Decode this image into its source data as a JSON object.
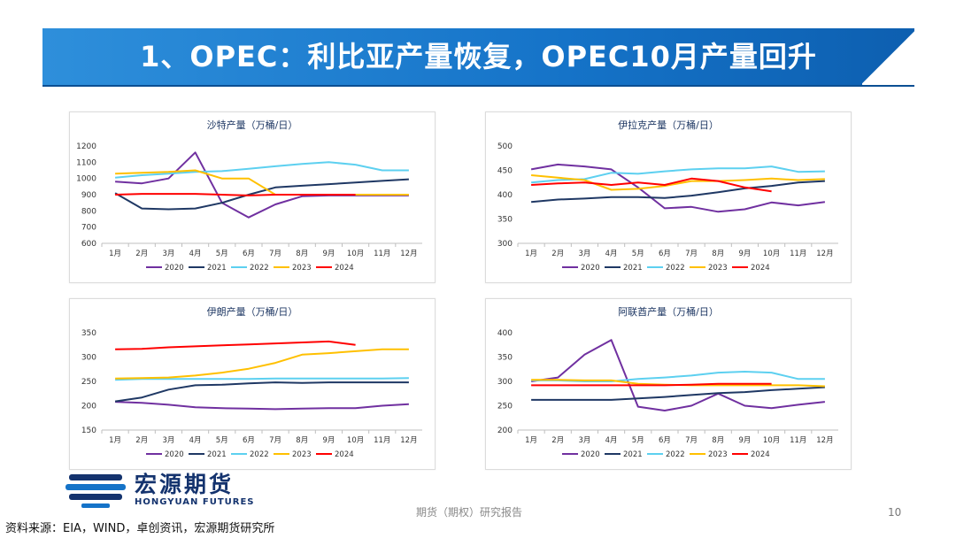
{
  "header": {
    "title": "1、OPEC：利比亚产量恢复，OPEC10月产量回升"
  },
  "footer": {
    "report_type": "期货（期权）研究报告",
    "page_number": "10",
    "source": "资料来源：EIA，WIND，卓创资讯，宏源期货研究所"
  },
  "logo": {
    "name_cn": "宏源期货",
    "name_en": "HONGYUAN FUTURES"
  },
  "colors": {
    "banner": "#1f7fd0",
    "s2020": "#7030a0",
    "s2021": "#1f3864",
    "s2022": "#5dd0f0",
    "s2023": "#ffc000",
    "s2024": "#ff0000"
  },
  "chart_data": [
    {
      "type": "line",
      "title": "沙特产量（万桶/日）",
      "categories": [
        "1月",
        "2月",
        "3月",
        "4月",
        "5月",
        "6月",
        "7月",
        "8月",
        "9月",
        "10月",
        "11月",
        "12月"
      ],
      "ylim": [
        600,
        1200
      ],
      "yticks": [
        600,
        700,
        800,
        900,
        1000,
        1100,
        1200
      ],
      "series": [
        {
          "name": "2020",
          "values": [
            980,
            970,
            1000,
            1160,
            850,
            760,
            840,
            890,
            895,
            895,
            895,
            895
          ]
        },
        {
          "name": "2021",
          "values": [
            910,
            815,
            810,
            815,
            850,
            900,
            945,
            955,
            965,
            975,
            985,
            995
          ]
        },
        {
          "name": "2022",
          "values": [
            1005,
            1020,
            1030,
            1040,
            1045,
            1060,
            1075,
            1090,
            1100,
            1085,
            1050,
            1050
          ]
        },
        {
          "name": "2023",
          "values": [
            1030,
            1035,
            1040,
            1050,
            1000,
            1000,
            900,
            900,
            900,
            900,
            900,
            900
          ]
        },
        {
          "name": "2024",
          "values": [
            900,
            905,
            905,
            905,
            900,
            895,
            900,
            900,
            900,
            900,
            null,
            null
          ]
        }
      ]
    },
    {
      "type": "line",
      "title": "伊拉克产量（万桶/日）",
      "categories": [
        "1月",
        "2月",
        "3月",
        "4月",
        "5月",
        "6月",
        "7月",
        "8月",
        "9月",
        "10月",
        "11月",
        "12月"
      ],
      "ylim": [
        300,
        500
      ],
      "yticks": [
        300,
        350,
        400,
        450,
        500
      ],
      "series": [
        {
          "name": "2020",
          "values": [
            452,
            462,
            458,
            452,
            415,
            372,
            375,
            365,
            370,
            384,
            378,
            385
          ]
        },
        {
          "name": "2021",
          "values": [
            385,
            390,
            392,
            395,
            395,
            393,
            398,
            405,
            413,
            418,
            425,
            428
          ]
        },
        {
          "name": "2022",
          "values": [
            425,
            430,
            432,
            445,
            443,
            448,
            452,
            454,
            454,
            458,
            447,
            448
          ]
        },
        {
          "name": "2023",
          "values": [
            440,
            435,
            430,
            410,
            412,
            418,
            428,
            428,
            430,
            433,
            430,
            432
          ]
        },
        {
          "name": "2024",
          "values": [
            420,
            423,
            425,
            420,
            425,
            420,
            433,
            428,
            415,
            407,
            null,
            null
          ]
        }
      ]
    },
    {
      "type": "line",
      "title": "伊朗产量（万桶/日）",
      "categories": [
        "1月",
        "2月",
        "3月",
        "4月",
        "5月",
        "6月",
        "7月",
        "8月",
        "9月",
        "10月",
        "11月",
        "12月"
      ],
      "ylim": [
        150,
        350
      ],
      "yticks": [
        150,
        200,
        250,
        300,
        350
      ],
      "series": [
        {
          "name": "2020",
          "values": [
            208,
            206,
            202,
            197,
            195,
            194,
            193,
            194,
            195,
            195,
            200,
            203
          ]
        },
        {
          "name": "2021",
          "values": [
            209,
            217,
            233,
            242,
            243,
            246,
            248,
            247,
            248,
            248,
            248,
            248
          ]
        },
        {
          "name": "2022",
          "values": [
            253,
            255,
            255,
            255,
            255,
            255,
            256,
            256,
            256,
            256,
            256,
            257
          ]
        },
        {
          "name": "2023",
          "values": [
            256,
            257,
            258,
            262,
            268,
            276,
            288,
            305,
            308,
            312,
            316,
            316
          ]
        },
        {
          "name": "2024",
          "values": [
            316,
            317,
            320,
            322,
            324,
            326,
            328,
            330,
            332,
            325,
            null,
            null
          ]
        }
      ]
    },
    {
      "type": "line",
      "title": "阿联酋产量（万桶/日）",
      "categories": [
        "1月",
        "2月",
        "3月",
        "4月",
        "5月",
        "6月",
        "7月",
        "8月",
        "9月",
        "10月",
        "11月",
        "12月"
      ],
      "ylim": [
        200,
        400
      ],
      "yticks": [
        200,
        250,
        300,
        350,
        400
      ],
      "series": [
        {
          "name": "2020",
          "values": [
            300,
            308,
            355,
            385,
            248,
            240,
            250,
            275,
            250,
            245,
            252,
            258
          ]
        },
        {
          "name": "2021",
          "values": [
            262,
            262,
            262,
            262,
            265,
            268,
            272,
            276,
            278,
            282,
            285,
            288
          ]
        },
        {
          "name": "2022",
          "values": [
            302,
            302,
            300,
            300,
            305,
            308,
            312,
            318,
            320,
            318,
            305,
            305
          ]
        },
        {
          "name": "2023",
          "values": [
            303,
            303,
            302,
            302,
            295,
            293,
            292,
            292,
            292,
            292,
            292,
            290
          ]
        },
        {
          "name": "2024",
          "values": [
            292,
            292,
            292,
            292,
            292,
            292,
            293,
            295,
            295,
            295,
            null,
            null
          ]
        }
      ]
    }
  ]
}
